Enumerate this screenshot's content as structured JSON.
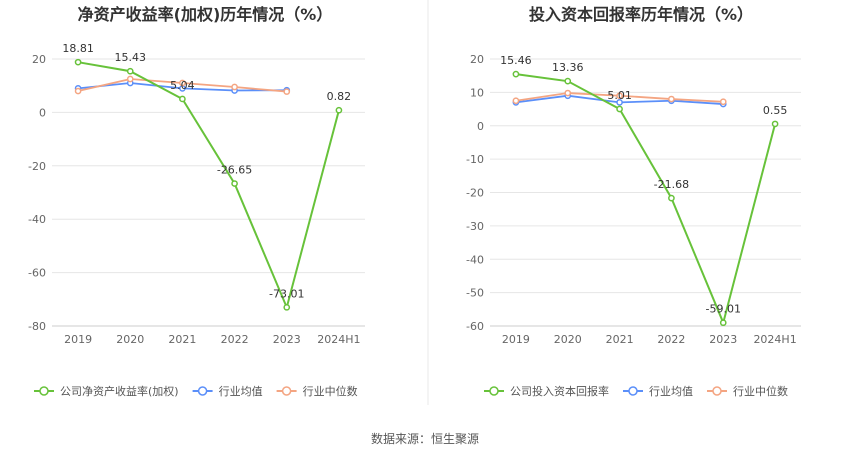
{
  "source_text": "数据来源：恒生聚源",
  "colors": {
    "company": "#67c23a",
    "avg": "#5b8ff9",
    "median": "#f4a582",
    "grid": "#e6e6e6",
    "divider": "#e8e8e8"
  },
  "chart_data": [
    {
      "type": "line",
      "title": "净资产收益率(加权)历年情况（%）",
      "categories": [
        "2019",
        "2020",
        "2021",
        "2022",
        "2023",
        "2024H1"
      ],
      "ylim": [
        -80,
        20
      ],
      "yticks": [
        20,
        0,
        -20,
        -40,
        -60,
        -80
      ],
      "ytick_labels": [
        "20",
        "0",
        "-20",
        "-40",
        "-60",
        "-80"
      ],
      "grid": true,
      "legend_position": "bottom-left",
      "series": [
        {
          "name": "公司净资产收益率(加权)",
          "key": "company",
          "values": [
            18.81,
            15.43,
            5.04,
            -26.65,
            -73.01,
            0.82
          ],
          "labels": [
            "18.81",
            "15.43",
            "5.04",
            "-26.65",
            "-73.01",
            "0.82"
          ]
        },
        {
          "name": "行业均值",
          "key": "avg",
          "values": [
            9.0,
            11.0,
            9.0,
            8.2,
            8.3,
            null
          ]
        },
        {
          "name": "行业中位数",
          "key": "median",
          "values": [
            8.0,
            12.5,
            11.0,
            9.5,
            7.8,
            null
          ]
        }
      ]
    },
    {
      "type": "line",
      "title": "投入资本回报率历年情况（%）",
      "categories": [
        "2019",
        "2020",
        "2021",
        "2022",
        "2023",
        "2024H1"
      ],
      "ylim": [
        -60,
        20
      ],
      "yticks": [
        20,
        10,
        0,
        -10,
        -20,
        -30,
        -40,
        -50,
        -60
      ],
      "ytick_labels": [
        "20",
        "10",
        "0",
        "-10",
        "-20",
        "-30",
        "-40",
        "-50",
        "-60"
      ],
      "grid": true,
      "legend_position": "bottom-left",
      "series": [
        {
          "name": "公司投入资本回报率",
          "key": "company",
          "values": [
            15.46,
            13.36,
            5.01,
            -21.68,
            -59.01,
            0.55
          ],
          "labels": [
            "15.46",
            "13.36",
            "5.01",
            "-21.68",
            "-59.01",
            "0.55"
          ]
        },
        {
          "name": "行业均值",
          "key": "avg",
          "values": [
            7.0,
            9.0,
            7.0,
            7.5,
            6.5,
            null
          ]
        },
        {
          "name": "行业中位数",
          "key": "median",
          "values": [
            7.5,
            9.8,
            9.0,
            8.0,
            7.2,
            null
          ]
        }
      ]
    }
  ]
}
